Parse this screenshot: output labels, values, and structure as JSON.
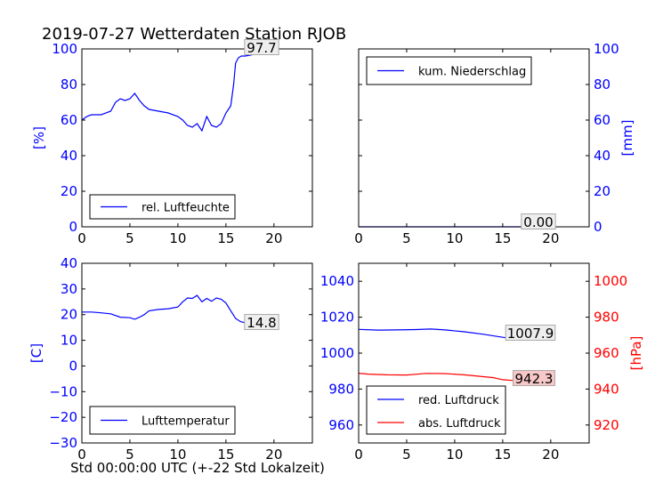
{
  "title": "2019-07-27 Wetterdaten Station RJOB",
  "xlabel": "Std 00:00:00 UTC (+-22 Std Lokalzeit)",
  "colors": {
    "blue": "#0000ff",
    "red": "#ff0000",
    "annot_red_bg": "#f8c8c8"
  },
  "chart_data": [
    {
      "id": "humidity",
      "type": "line",
      "xlim": [
        0,
        24
      ],
      "ylim": [
        0,
        100
      ],
      "x_ticks": [
        0,
        5,
        10,
        15,
        20
      ],
      "y_ticks": [
        0,
        20,
        40,
        60,
        80,
        100
      ],
      "ylabel": "[%]",
      "y_axis_side": "left",
      "y_axis_color": "#0000ff",
      "legend_position": "lower-left",
      "annotation": "97.7",
      "series": [
        {
          "name": "rel. Luftfeuchte",
          "color": "#0000ff",
          "x": [
            0,
            0.5,
            1,
            2,
            3,
            3.5,
            4,
            4.5,
            5,
            5.5,
            6,
            6.5,
            7,
            8,
            9,
            10,
            10.5,
            11,
            11.5,
            12,
            12.5,
            13,
            13.5,
            14,
            14.5,
            15,
            15.5,
            15.8,
            16,
            16.3,
            16.6,
            17,
            18,
            19,
            20
          ],
          "y": [
            60,
            62,
            63,
            63,
            65,
            70,
            72,
            71,
            72,
            75,
            71,
            68,
            66,
            65,
            64,
            62,
            60,
            57,
            56,
            58,
            54,
            62,
            57,
            56,
            58,
            64,
            68,
            80,
            92,
            95,
            96,
            96,
            97,
            97.5,
            97.7
          ]
        }
      ]
    },
    {
      "id": "precip",
      "type": "line",
      "xlim": [
        0,
        24
      ],
      "ylim": [
        0,
        100
      ],
      "x_ticks": [
        0,
        5,
        10,
        15,
        20
      ],
      "y_ticks": [
        0,
        20,
        40,
        60,
        80,
        100
      ],
      "ylabel": "[mm]",
      "y_axis_side": "right",
      "y_axis_color": "#0000ff",
      "legend_position": "upper-left",
      "annotation": "0.00",
      "series": [
        {
          "name": "kum. Niederschlag",
          "color": "#0000ff",
          "x": [
            0,
            20
          ],
          "y": [
            0,
            0
          ]
        }
      ]
    },
    {
      "id": "temperature",
      "type": "line",
      "xlim": [
        0,
        24
      ],
      "ylim": [
        -30,
        40
      ],
      "x_ticks": [
        0,
        5,
        10,
        15,
        20
      ],
      "y_ticks": [
        -30,
        -20,
        -10,
        0,
        10,
        20,
        30,
        40
      ],
      "ylabel": "[C]",
      "y_axis_side": "left",
      "y_axis_color": "#0000ff",
      "legend_position": "lower-left",
      "annotation": "14.8",
      "series": [
        {
          "name": "Lufttemperatur",
          "color": "#0000ff",
          "x": [
            0,
            1,
            2,
            3,
            4,
            5,
            5.5,
            6,
            6.5,
            7,
            8,
            9,
            10,
            10.5,
            11,
            11.5,
            12,
            12.5,
            13,
            13.5,
            14,
            14.5,
            15,
            15.5,
            16,
            16.5,
            17,
            18,
            19,
            20
          ],
          "y": [
            21,
            21,
            20.7,
            20.3,
            19,
            18.8,
            18.2,
            19,
            20,
            21.5,
            22,
            22.3,
            23,
            25,
            26.5,
            26.3,
            27.5,
            25,
            26.3,
            25.2,
            26.5,
            26,
            24.5,
            21.5,
            18.5,
            17.3,
            16.8,
            16,
            15.3,
            14.8
          ]
        }
      ]
    },
    {
      "id": "pressure",
      "type": "line",
      "xlim": [
        0,
        24
      ],
      "ylim": [
        950,
        1050
      ],
      "ylim_right": [
        910,
        1010
      ],
      "x_ticks": [
        0,
        5,
        10,
        15,
        20
      ],
      "y_ticks": [
        960,
        980,
        1000,
        1020,
        1040
      ],
      "y_ticks_right": [
        920,
        940,
        960,
        980,
        1000
      ],
      "y_axis_side": "left",
      "y_axis_color": "#0000ff",
      "ylabel_right": "[hPa]",
      "y_axis_right_color": "#ff0000",
      "legend_position": "lower-left",
      "annotations": [
        "1007.9",
        "942.3"
      ],
      "series": [
        {
          "name": "red. Luftdruck",
          "color": "#0000ff",
          "axis": "left",
          "x": [
            0,
            2,
            4,
            6,
            7.5,
            9,
            11,
            13,
            15,
            16,
            18,
            20
          ],
          "y": [
            1013.2,
            1012.8,
            1012.9,
            1013.1,
            1013.4,
            1012.9,
            1011.9,
            1010.5,
            1008.8,
            1008.1,
            1008.4,
            1007.9
          ]
        },
        {
          "name": "abs. Luftdruck",
          "color": "#ff0000",
          "axis": "right",
          "x": [
            0,
            1,
            3,
            5,
            7,
            9,
            11,
            13,
            14,
            15,
            16,
            18,
            20
          ],
          "y": [
            948.8,
            948.3,
            947.9,
            947.8,
            948.7,
            948.6,
            947.9,
            946.9,
            946.4,
            945.2,
            944.8,
            943.3,
            942.3
          ]
        }
      ]
    }
  ]
}
